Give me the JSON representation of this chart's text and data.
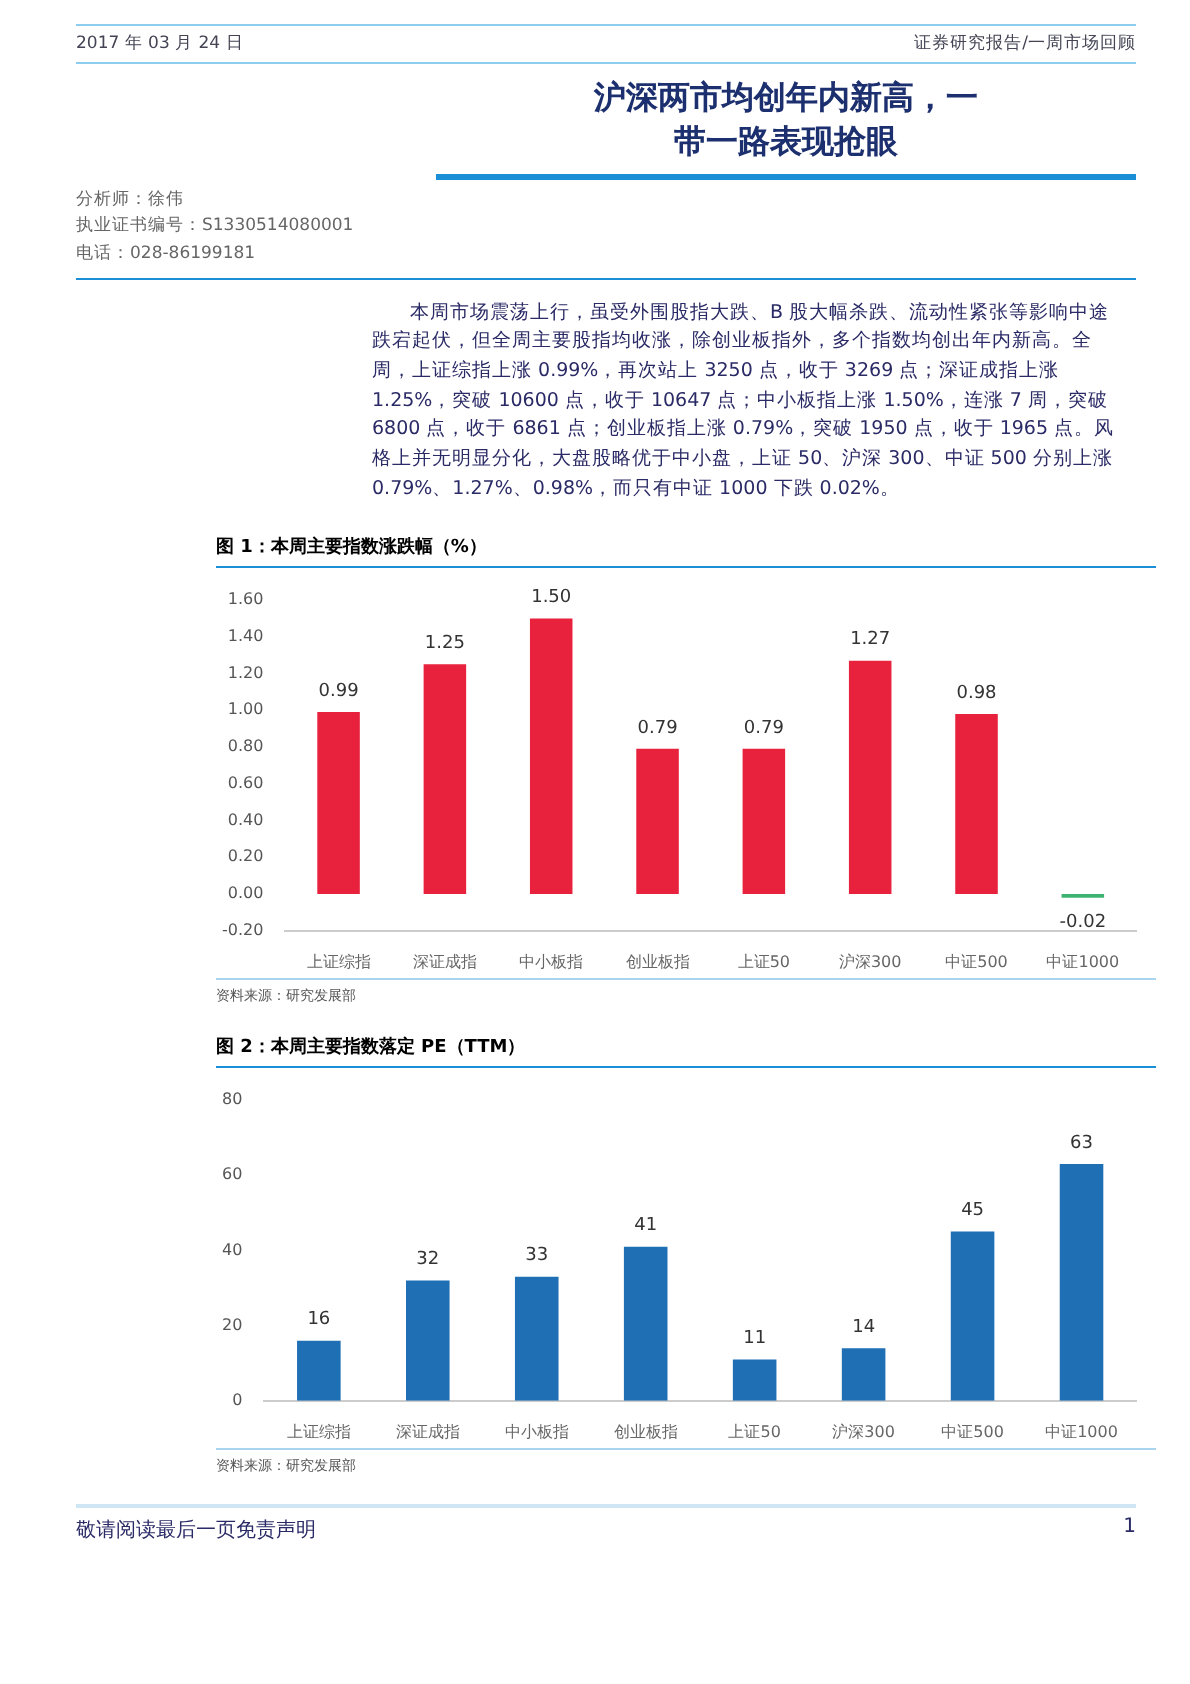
{
  "chart_data": [
    {
      "type": "other",
      "title": "沪深两市均创年内新高，一带一路表现抢眼",
      "annotations": [
        "2017 年 03 月 24 日",
        "证券研究报告/一周市场回顾",
        "分析师：徐伟",
        "执业证书编号：S1330514080001",
        "电话：028-86199181",
        "本周市场震荡上行，虽受外围股指大跌、B 股大幅杀跌、流动性紧张等影响中途跌宕起伏，但全周主要股指均收涨，除创业板指外，多个指数均创出年内新高。全周，上证综指上涨 0.99%，再次站上 3250 点，收于 3269 点；深证成指上涨 1.25%，突破 10600 点，收于 10647 点；中小板指上涨 1.50%，连涨 7 周，突破 6800 点，收于 6861 点；创业板指上涨 0.79%，突破 1950 点，收于 1965 点。风格上并无明显分化，大盘股略优于中小盘，上证 50、沪深 300、中证 500 分别上涨 0.79%、1.27%、0.98%，而只有中证 1000 下跌 0.02%。"
      ]
    },
    {
      "type": "bar",
      "title": "图 1：本周主要指数涨跌幅（%）",
      "categories": [
        "上证综指",
        "深证成指",
        "中小板指",
        "创业板指",
        "上证50",
        "沪深300",
        "中证500",
        "中证1000"
      ],
      "values": [
        0.99,
        1.25,
        1.5,
        0.79,
        0.79,
        1.27,
        0.98,
        -0.02
      ],
      "colors": [
        "#e8213c",
        "#e8213c",
        "#e8213c",
        "#e8213c",
        "#e8213c",
        "#e8213c",
        "#e8213c",
        "#3cb371"
      ],
      "value_labels": [
        "0.99",
        "1.25",
        "1.50",
        "0.79",
        "0.79",
        "1.27",
        "0.98",
        "-0.02"
      ],
      "ylim": [
        -0.2,
        1.6
      ],
      "yticks": [
        {
          "value": -0.2,
          "label": "-0.20"
        },
        {
          "value": 0,
          "label": "0.00"
        },
        {
          "value": 0.2,
          "label": "0.20"
        },
        {
          "value": 0.4,
          "label": "0.40"
        },
        {
          "value": 0.6,
          "label": "0.60"
        },
        {
          "value": 0.8,
          "label": "0.80"
        },
        {
          "value": 1,
          "label": "1.00"
        },
        {
          "value": 1.2,
          "label": "1.20"
        },
        {
          "value": 1.4,
          "label": "1.40"
        },
        {
          "value": 1.6,
          "label": "1.60"
        }
      ],
      "annotations": [
        "资料来源：研究发展部"
      ]
    },
    {
      "type": "bar",
      "title": "图 2：本周主要指数落定 PE（TTM）",
      "categories": [
        "上证综指",
        "深证成指",
        "中小板指",
        "创业板指",
        "上证50",
        "沪深300",
        "中证500",
        "中证1000"
      ],
      "values": [
        16,
        32,
        33,
        41,
        11,
        14,
        45,
        63
      ],
      "color": "#1f6fb5",
      "data_labels": true,
      "ylim": [
        0,
        80
      ],
      "yticks": [
        0,
        20,
        40,
        60,
        80
      ],
      "annotations": [
        "资料来源：研究发展部"
      ]
    },
    {
      "type": "other",
      "annotations": [
        "敬请阅读最后一页免责声明",
        "1"
      ]
    }
  ]
}
